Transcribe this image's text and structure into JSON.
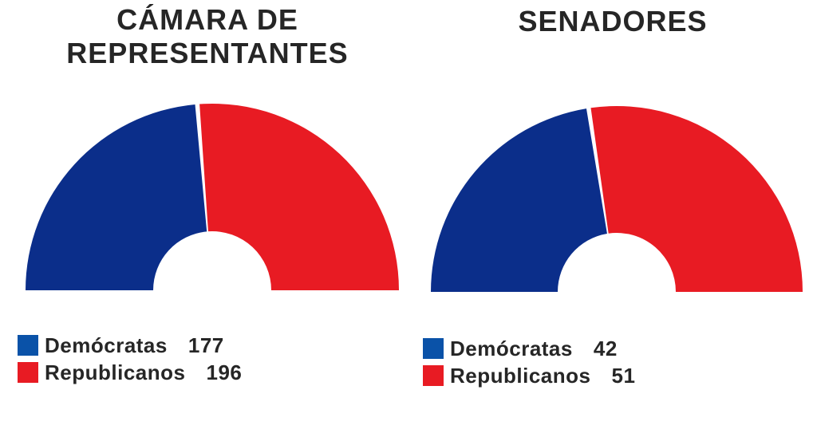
{
  "colors": {
    "democrats": "#0b2e8a",
    "republicans": "#e81b23",
    "legend_democrats": "#0a52a8"
  },
  "chart_data": [
    {
      "type": "pie",
      "title": [
        "CÁMARA DE",
        "REPRESENTANTES"
      ],
      "categories": [
        "Demócratas",
        "Republicanos"
      ],
      "values": [
        177,
        196
      ]
    },
    {
      "type": "pie",
      "title": [
        "SENADORES"
      ],
      "categories": [
        "Demócratas",
        "Republicanos"
      ],
      "values": [
        42,
        51
      ]
    }
  ]
}
